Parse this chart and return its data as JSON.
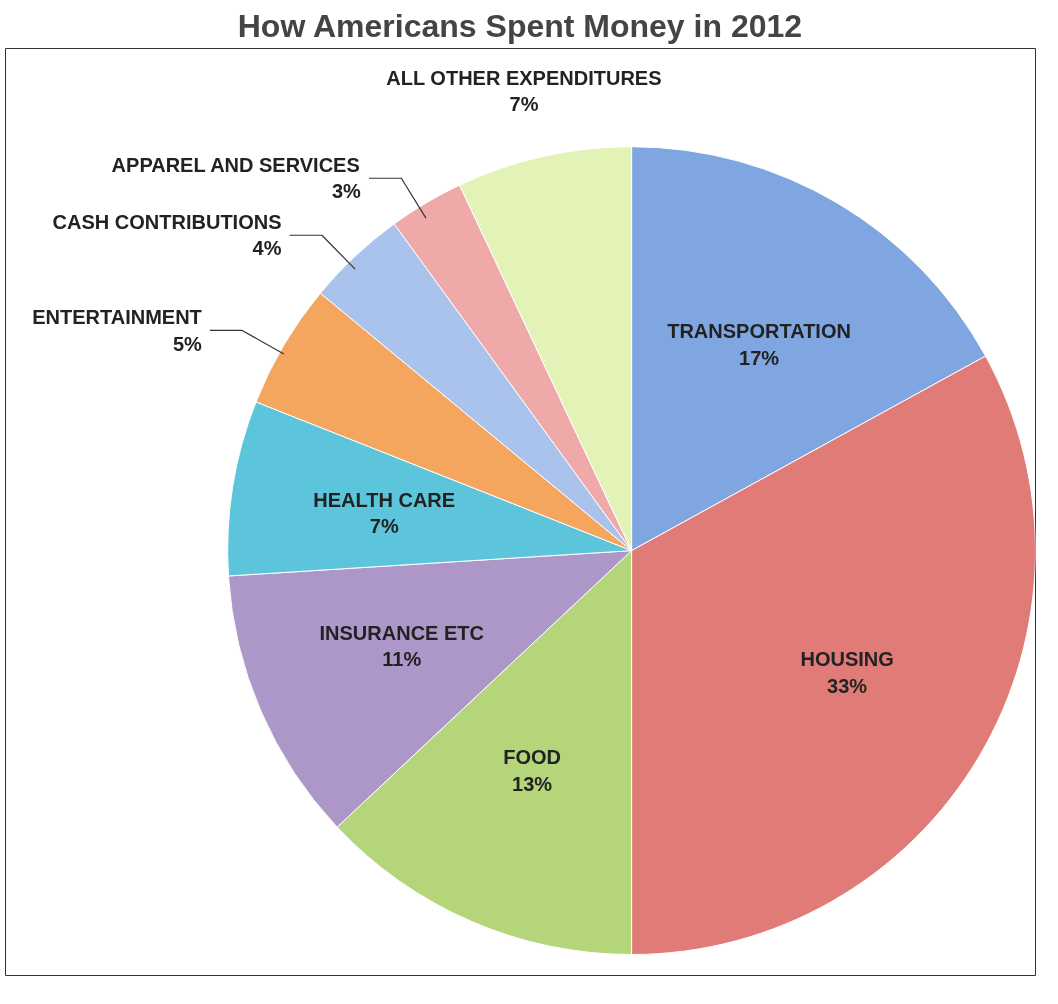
{
  "chart_data": {
    "type": "pie",
    "title": "How Americans Spent Money in 2012",
    "categories": [
      "TRANSPORTATION",
      "HOUSING",
      "FOOD",
      "INSURANCE ETC",
      "HEALTH CARE",
      "ENTERTAINMENT",
      "CASH CONTRIBUTIONS",
      "APPAREL AND SERVICES",
      "ALL OTHER EXPENDITURES"
    ],
    "values": [
      17,
      33,
      13,
      11,
      7,
      5,
      4,
      3,
      7
    ],
    "value_labels": [
      "17%",
      "33%",
      "13%",
      "11%",
      "7%",
      "5%",
      "4%",
      "3%",
      "7%"
    ],
    "colors": [
      "#7fa6e0",
      "#e07b78",
      "#b5d57a",
      "#ad96c8",
      "#5cc5dc",
      "#f4a55e",
      "#a9c3ec",
      "#efa9a9",
      "#e3f3b8"
    ],
    "legend": false
  }
}
